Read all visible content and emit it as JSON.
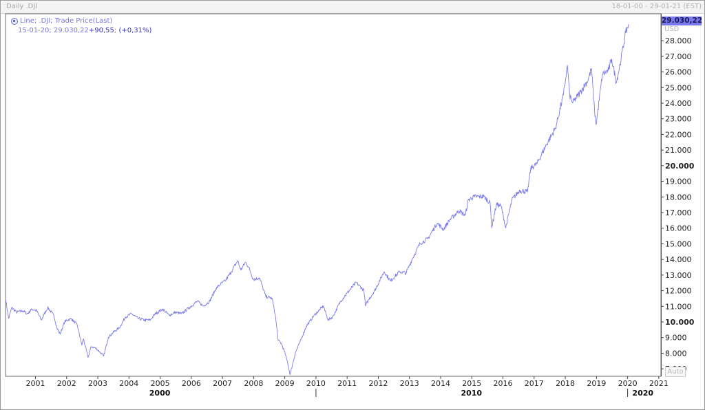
{
  "window": {
    "title": "Daily .DJI",
    "range": "18-01-00 - 29-01-21 (EST)"
  },
  "legend": {
    "series_label": "Line; .DJI; Trade Price(Last)",
    "hover_date": "15-01-20",
    "hover_value": "29.030,22",
    "hover_change": "+90,55",
    "hover_change_pct": "(+0,31%)"
  },
  "last_value": "29.030,22",
  "unit": "USD",
  "auto_label": "Auto",
  "colors": {
    "line": "#7b7bea",
    "badge": "#7a7aee"
  },
  "chart_data": {
    "type": "line",
    "title": "Daily .DJI",
    "xlabel": "",
    "ylabel": "USD",
    "ylim": [
      6500,
      29700
    ],
    "xlim": [
      2000.05,
      2021.08
    ],
    "y_ticks": [
      7000,
      8000,
      9000,
      10000,
      11000,
      12000,
      13000,
      14000,
      15000,
      16000,
      17000,
      18000,
      19000,
      20000,
      21000,
      22000,
      23000,
      24000,
      25000,
      26000,
      27000,
      28000
    ],
    "y_tick_labels": [
      "7.000",
      "8.000",
      "9.000",
      "10.000",
      "11.000",
      "12.000",
      "13.000",
      "14.000",
      "15.000",
      "16.000",
      "17.000",
      "18.000",
      "19.000",
      "20.000",
      "21.000",
      "22.000",
      "23.000",
      "24.000",
      "25.000",
      "26.000",
      "27.000",
      "28.000"
    ],
    "y_bold_ticks": [
      "10.000",
      "20.000"
    ],
    "x_year_ticks": [
      "2001",
      "2002",
      "2003",
      "2004",
      "2005",
      "2006",
      "2007",
      "2008",
      "2009",
      "2010",
      "2011",
      "2012",
      "2013",
      "2014",
      "2015",
      "2016",
      "2017",
      "2018",
      "2019",
      "2020",
      "2021"
    ],
    "x_decade_labels": [
      {
        "label": "2000",
        "x": 2005.0
      },
      {
        "label": "2010",
        "x": 2015.0
      },
      {
        "label": "2020",
        "x": 2020.5
      }
    ],
    "grid": false,
    "legend_position": "top-left",
    "series": [
      {
        "x": [
          2000.05,
          2000.15,
          2000.25,
          2000.4,
          2000.6,
          2000.75,
          2000.9,
          2001.05,
          2001.2,
          2001.4,
          2001.6,
          2001.7,
          2001.8,
          2001.95,
          2002.15,
          2002.35,
          2002.5,
          2002.55,
          2002.7,
          2002.8,
          2002.95,
          2003.1,
          2003.2,
          2003.35,
          2003.5,
          2003.7,
          2003.9,
          2004.1,
          2004.3,
          2004.5,
          2004.7,
          2004.85,
          2005.1,
          2005.3,
          2005.5,
          2005.7,
          2005.95,
          2006.2,
          2006.4,
          2006.6,
          2006.8,
          2006.95,
          2007.1,
          2007.3,
          2007.5,
          2007.6,
          2007.75,
          2007.85,
          2008.0,
          2008.2,
          2008.4,
          2008.6,
          2008.7,
          2008.8,
          2008.9,
          2009.0,
          2009.1,
          2009.18,
          2009.35,
          2009.5,
          2009.7,
          2009.95,
          2010.25,
          2010.4,
          2010.55,
          2010.8,
          2011.0,
          2011.3,
          2011.55,
          2011.6,
          2011.7,
          2011.9,
          2012.2,
          2012.4,
          2012.7,
          2012.9,
          2013.1,
          2013.35,
          2013.6,
          2013.9,
          2014.1,
          2014.3,
          2014.6,
          2014.8,
          2014.9,
          2015.1,
          2015.4,
          2015.6,
          2015.65,
          2015.8,
          2015.95,
          2016.1,
          2016.3,
          2016.55,
          2016.8,
          2016.9,
          2017.1,
          2017.4,
          2017.7,
          2017.95,
          2018.08,
          2018.15,
          2018.25,
          2018.5,
          2018.75,
          2018.85,
          2018.95,
          2019.0,
          2019.2,
          2019.4,
          2019.5,
          2019.65,
          2019.8,
          2019.95,
          2020.04
        ],
        "values": [
          11500,
          10200,
          10900,
          10600,
          10700,
          10500,
          10800,
          10700,
          10100,
          10900,
          10400,
          9600,
          9200,
          10000,
          10200,
          9800,
          8500,
          8900,
          7700,
          8400,
          8300,
          8000,
          7800,
          9000,
          9300,
          9600,
          10300,
          10500,
          10200,
          10100,
          10100,
          10500,
          10800,
          10400,
          10600,
          10500,
          10900,
          11300,
          11000,
          11300,
          12100,
          12400,
          12600,
          13200,
          13900,
          13300,
          13800,
          13500,
          12700,
          12800,
          11600,
          11500,
          10500,
          8800,
          8600,
          8100,
          7400,
          6600,
          8000,
          8700,
          9700,
          10400,
          11000,
          10100,
          10300,
          11300,
          11800,
          12500,
          12000,
          11000,
          11400,
          12000,
          13200,
          12600,
          13200,
          13100,
          14000,
          15000,
          15300,
          16300,
          15900,
          16500,
          17100,
          16800,
          17800,
          18000,
          18000,
          17600,
          16000,
          17500,
          17400,
          16000,
          17800,
          18400,
          18300,
          19800,
          20100,
          21300,
          22400,
          24500,
          26400,
          24500,
          24000,
          24700,
          25500,
          26200,
          23500,
          22600,
          25800,
          26100,
          26800,
          25300,
          26800,
          28500,
          29030
        ]
      }
    ]
  }
}
